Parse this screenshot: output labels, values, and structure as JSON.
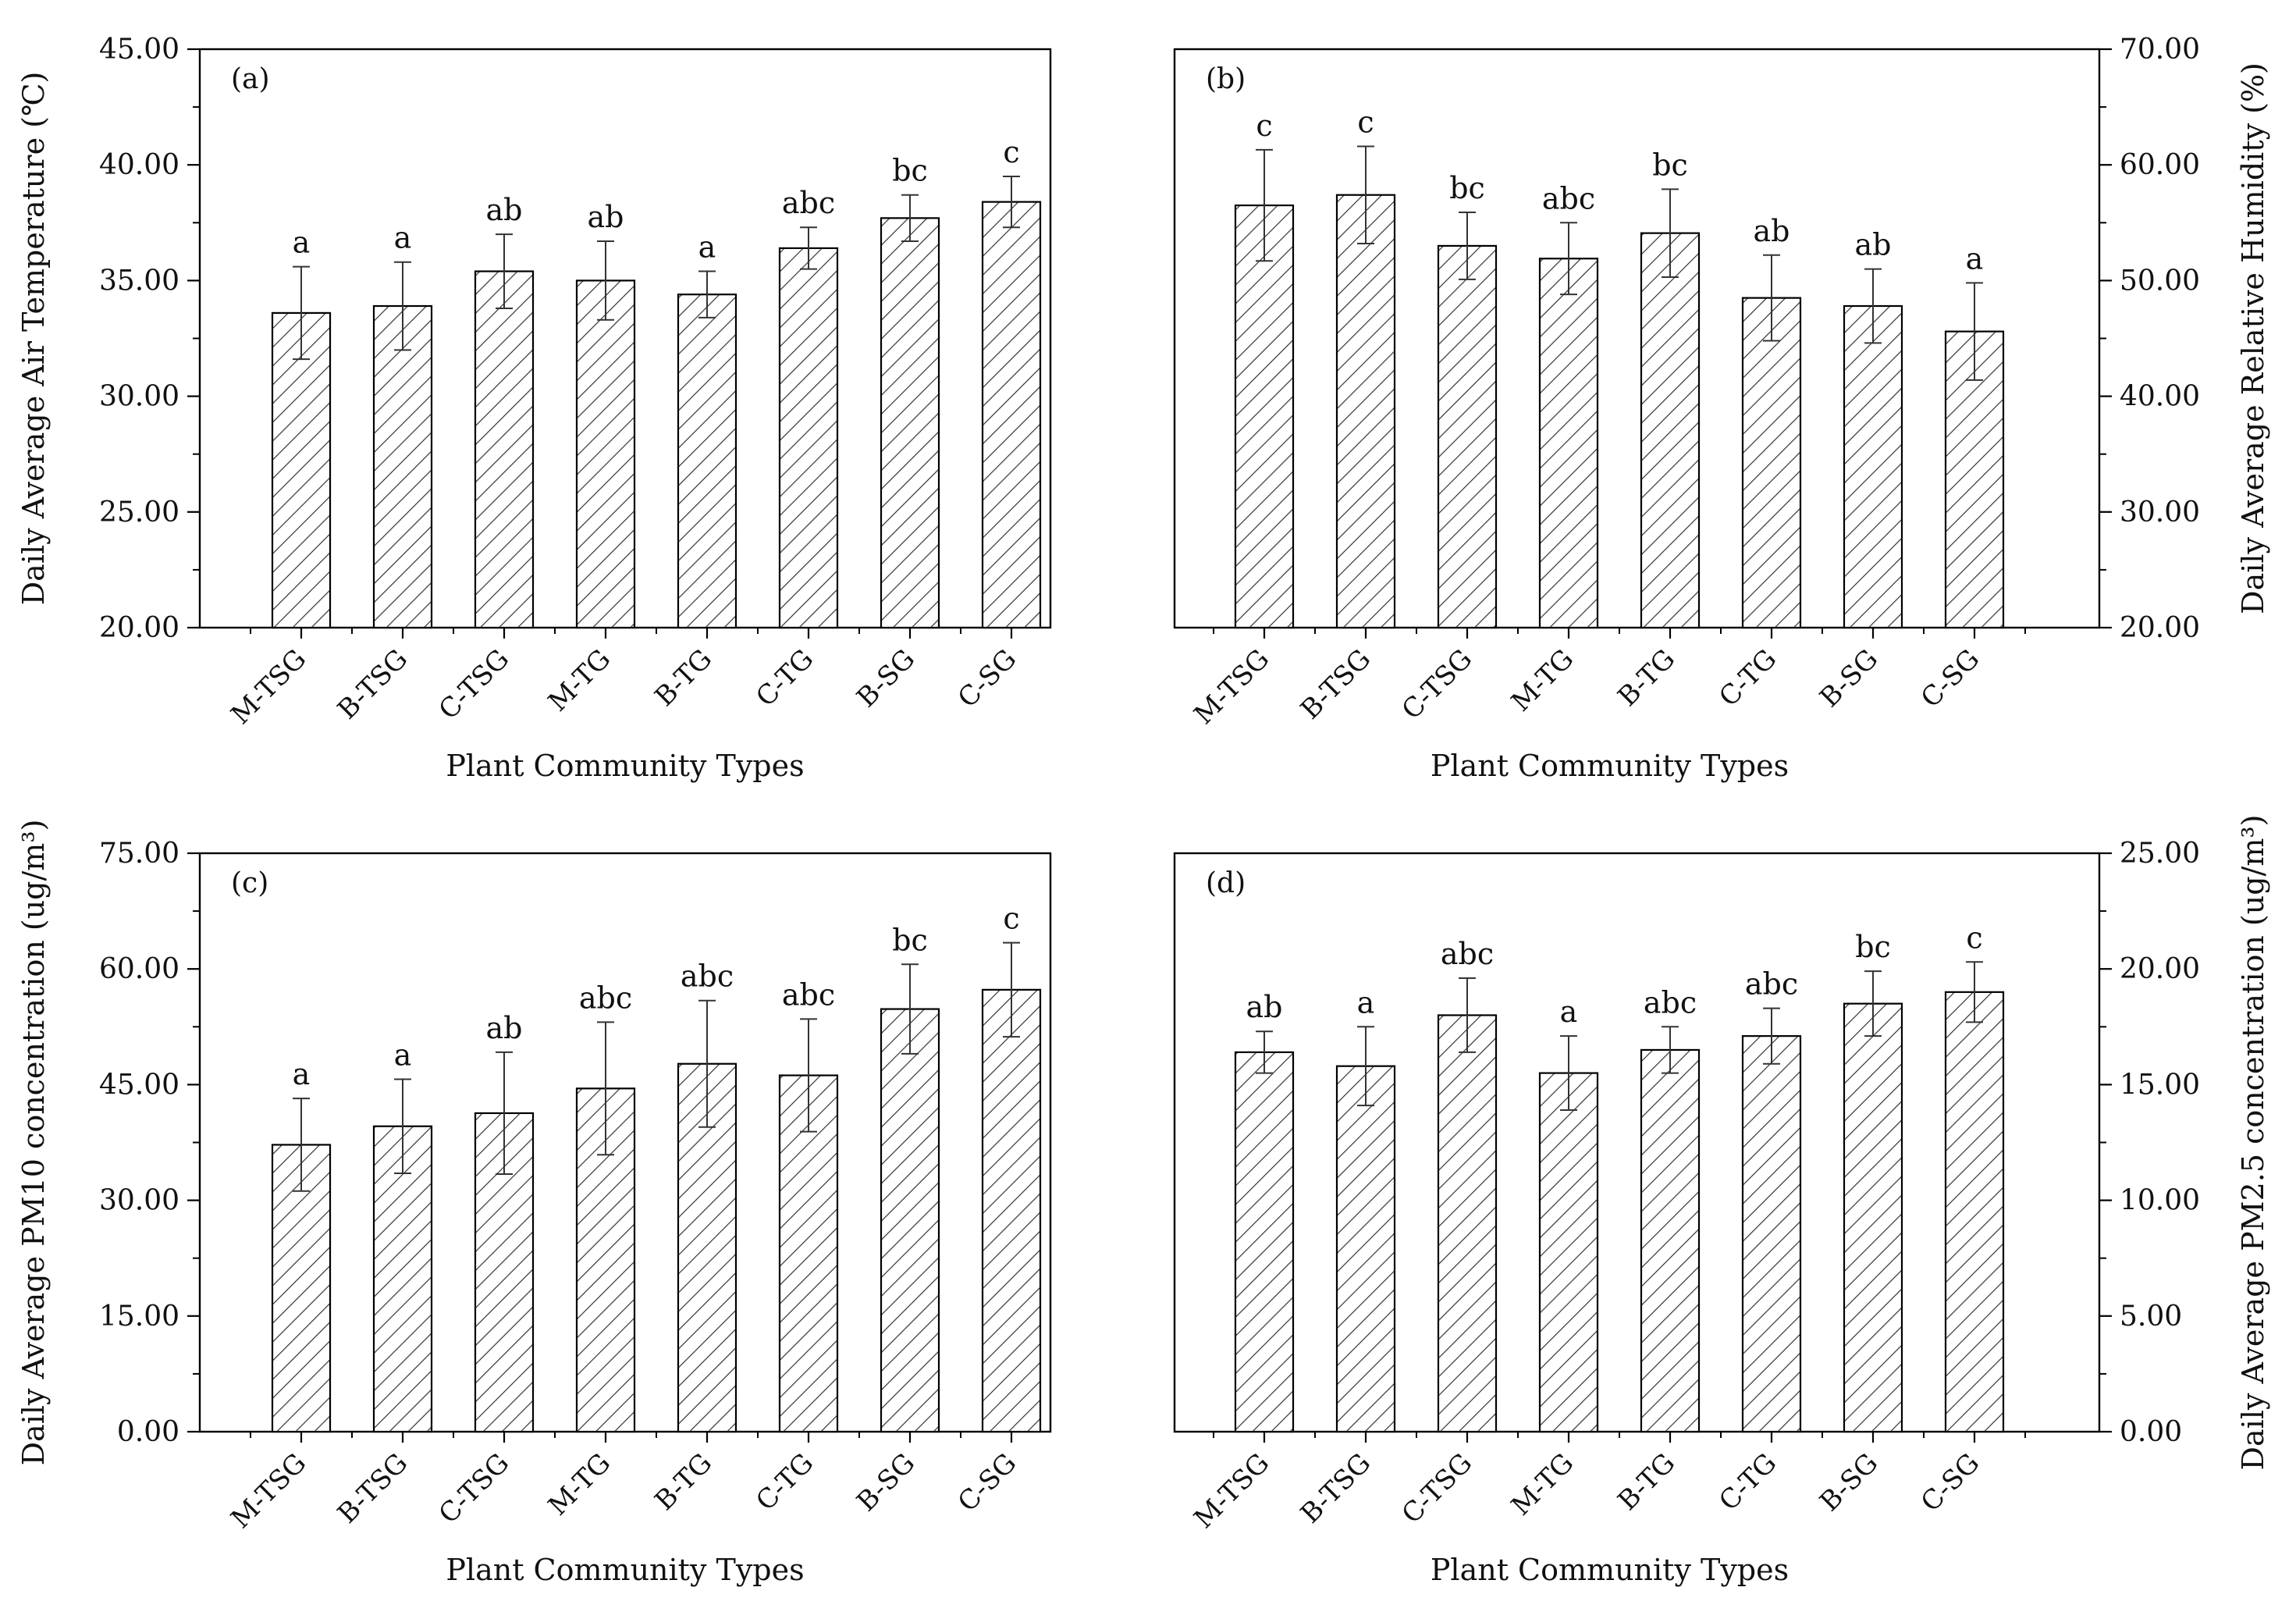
{
  "chart_data": [
    {
      "type": "bar",
      "panel_label": "(a)",
      "categories": [
        "M-TSG",
        "B-TSG",
        "C-TSG",
        "M-TG",
        "B-TG",
        "C-TG",
        "B-SG",
        "C-SG"
      ],
      "values": [
        33.6,
        33.9,
        35.4,
        35.0,
        34.4,
        36.4,
        37.7,
        38.4
      ],
      "errors": [
        2.0,
        1.9,
        1.6,
        1.7,
        1.0,
        0.9,
        1.0,
        1.1
      ],
      "significance": [
        "a",
        "a",
        "ab",
        "ab",
        "a",
        "abc",
        "bc",
        "c"
      ],
      "xlabel": "Plant Community Types",
      "ylabel": "Daily Average Air Temperature (℃)",
      "ylim": [
        20,
        45
      ],
      "yticks": [
        "20.00",
        "25.00",
        "30.00",
        "35.00",
        "40.00",
        "45.00"
      ],
      "y_axis_side": "left",
      "bar_pattern": "diagonal-hatch",
      "grid": false
    },
    {
      "type": "bar",
      "panel_label": "(b)",
      "categories": [
        "M-TSG",
        "B-TSG",
        "C-TSG",
        "M-TG",
        "B-TG",
        "C-TG",
        "B-SG",
        "C-SG"
      ],
      "values": [
        56.5,
        57.4,
        53.0,
        51.9,
        54.1,
        48.5,
        47.8,
        45.6
      ],
      "errors": [
        4.8,
        4.2,
        2.9,
        3.1,
        3.8,
        3.7,
        3.2,
        4.2
      ],
      "significance": [
        "c",
        "c",
        "bc",
        "abc",
        "bc",
        "ab",
        "ab",
        "a"
      ],
      "xlabel": "Plant Community Types",
      "ylabel": "Daily Average Relative Humidity (%)",
      "ylim": [
        20,
        70
      ],
      "yticks": [
        "20.00",
        "30.00",
        "40.00",
        "50.00",
        "60.00",
        "70.00"
      ],
      "y_axis_side": "right",
      "bar_pattern": "diagonal-hatch",
      "grid": false
    },
    {
      "type": "bar",
      "panel_label": "(c)",
      "categories": [
        "M-TSG",
        "B-TSG",
        "C-TSG",
        "M-TG",
        "B-TG",
        "C-TG",
        "B-SG",
        "C-SG"
      ],
      "values": [
        37.2,
        39.6,
        41.3,
        44.5,
        47.7,
        46.2,
        54.8,
        57.3
      ],
      "errors": [
        6.0,
        6.1,
        7.9,
        8.6,
        8.2,
        7.3,
        5.8,
        6.1
      ],
      "significance": [
        "a",
        "a",
        "ab",
        "abc",
        "abc",
        "abc",
        "bc",
        "c"
      ],
      "xlabel": "Plant Community Types",
      "ylabel": "Daily Average PM10 concentration (ug/m³)",
      "ylim": [
        0,
        75
      ],
      "yticks": [
        "0.00",
        "15.00",
        "30.00",
        "45.00",
        "60.00",
        "75.00"
      ],
      "y_axis_side": "left",
      "bar_pattern": "diagonal-hatch",
      "grid": false
    },
    {
      "type": "bar",
      "panel_label": "(d)",
      "categories": [
        "M-TSG",
        "B-TSG",
        "C-TSG",
        "M-TG",
        "B-TG",
        "C-TG",
        "B-SG",
        "C-SG"
      ],
      "values": [
        16.4,
        15.8,
        18.0,
        15.5,
        16.5,
        17.1,
        18.5,
        19.0
      ],
      "errors": [
        0.9,
        1.7,
        1.6,
        1.6,
        1.0,
        1.2,
        1.4,
        1.3
      ],
      "significance": [
        "ab",
        "a",
        "abc",
        "a",
        "abc",
        "abc",
        "bc",
        "c"
      ],
      "xlabel": "Plant Community Types",
      "ylabel": "Daily Average PM2.5 concentration (ug/m³)",
      "ylim": [
        0,
        25
      ],
      "yticks": [
        "0.00",
        "5.00",
        "10.00",
        "15.00",
        "20.00",
        "25.00"
      ],
      "y_axis_side": "right",
      "bar_pattern": "diagonal-hatch",
      "grid": false
    }
  ]
}
